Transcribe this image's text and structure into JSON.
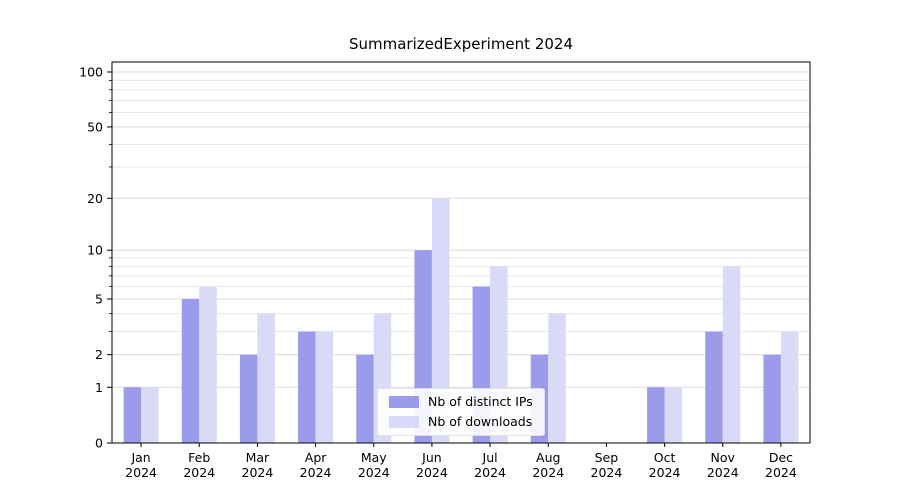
{
  "page": {
    "title": "SummarizedExperiment 2024"
  },
  "chart_data": {
    "type": "bar",
    "title": "SummarizedExperiment 2024",
    "xlabel": "",
    "ylabel": "",
    "yscale": "log1p",
    "ylim": [
      0,
      100
    ],
    "yticks": [
      0,
      1,
      2,
      5,
      10,
      20,
      50,
      100
    ],
    "minor_yticks": [
      3,
      4,
      6,
      7,
      8,
      9,
      30,
      40,
      60,
      70,
      80,
      90
    ],
    "grid": true,
    "legend_position": "lower center",
    "categories": [
      "Jan 2024",
      "Feb 2024",
      "Mar 2024",
      "Apr 2024",
      "May 2024",
      "Jun 2024",
      "Jul 2024",
      "Aug 2024",
      "Sep 2024",
      "Oct 2024",
      "Nov 2024",
      "Dec 2024"
    ],
    "series": [
      {
        "name": "Nb of distinct IPs",
        "color": "#9b9bec",
        "values": [
          1,
          5,
          2,
          3,
          2,
          10,
          6,
          2,
          0,
          1,
          3,
          2
        ]
      },
      {
        "name": "Nb of downloads",
        "color": "#d9d9f8",
        "values": [
          1,
          6,
          4,
          3,
          4,
          20,
          8,
          4,
          0,
          1,
          8,
          3
        ]
      }
    ],
    "colors": {
      "axis": "#000000",
      "major_grid": "#dadada",
      "minor_grid": "#e7e7e7",
      "background": "#ffffff"
    }
  }
}
